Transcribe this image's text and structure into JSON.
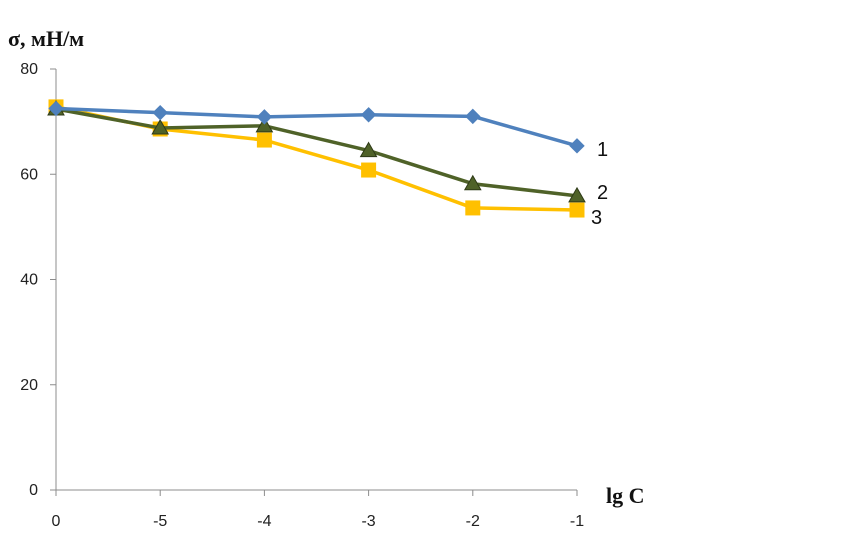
{
  "chart_data": {
    "type": "line",
    "ylabel": "σ, мН/м",
    "xlabel": "lg C",
    "categories": [
      "0",
      "-5",
      "-4",
      "-3",
      "-2",
      "-1"
    ],
    "ylim": [
      0,
      80
    ],
    "yticks": [
      "0",
      "20",
      "40",
      "60",
      "80"
    ],
    "grid": false,
    "series": [
      {
        "name": "1",
        "values": [
          72.5,
          71.7,
          70.9,
          71.3,
          71.0,
          65.4
        ],
        "color": "#4f81bd",
        "marker": "diamond"
      },
      {
        "name": "2",
        "values": [
          72.4,
          68.8,
          69.2,
          64.5,
          58.2,
          55.9
        ],
        "color": "#4f6228",
        "marker": "triangle"
      },
      {
        "name": "3",
        "values": [
          72.8,
          68.6,
          66.5,
          60.8,
          53.6,
          53.2
        ],
        "color": "#ffc000",
        "marker": "square"
      }
    ]
  }
}
